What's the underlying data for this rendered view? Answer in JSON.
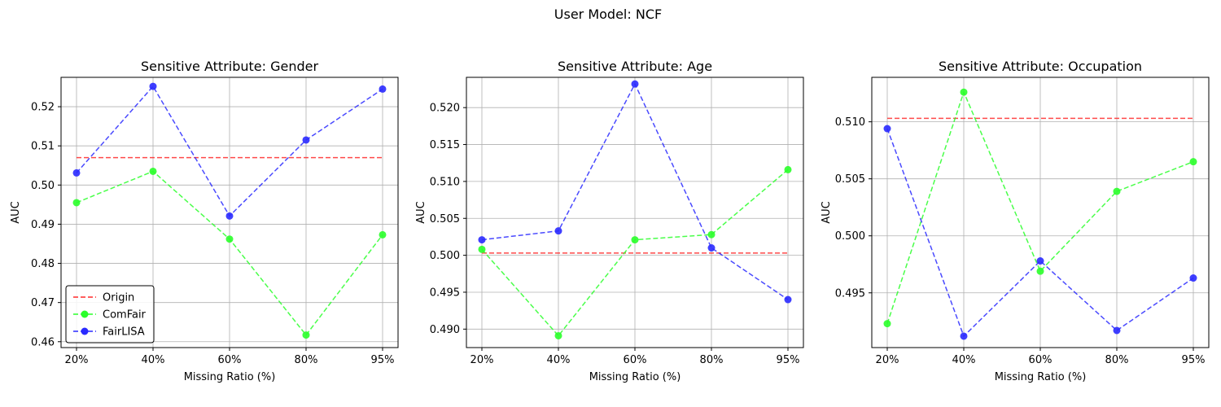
{
  "figure": {
    "suptitle": "User Model: NCF"
  },
  "colors": {
    "Origin": "#ff2a2a",
    "ComFair": "#2aff2a",
    "FairLISA": "#2a2aff",
    "grid": "#b0b0b0"
  },
  "chart_data": [
    {
      "type": "line",
      "title": "Sensitive Attribute: Gender",
      "xlabel": "Missing Ratio (%)",
      "ylabel": "AUC",
      "categories": [
        "20%",
        "40%",
        "60%",
        "80%",
        "95%"
      ],
      "ylim": [
        0.4585,
        0.5275
      ],
      "yticks": [
        0.46,
        0.47,
        0.48,
        0.49,
        0.5,
        0.51,
        0.52
      ],
      "ytick_labels": [
        "0.46",
        "0.47",
        "0.48",
        "0.49",
        "0.50",
        "0.51",
        "0.52"
      ],
      "grid": true,
      "legend": {
        "location": "lower left",
        "entries": [
          "Origin",
          "ComFair",
          "FairLISA"
        ]
      },
      "series": [
        {
          "name": "Origin",
          "style": "dashed",
          "markers": false,
          "values": [
            0.507,
            0.507,
            0.507,
            0.507,
            0.507
          ]
        },
        {
          "name": "ComFair",
          "style": "dashed",
          "markers": true,
          "values": [
            0.4955,
            0.5035,
            0.4862,
            0.4617,
            0.4873
          ]
        },
        {
          "name": "FairLISA",
          "style": "dashed",
          "markers": true,
          "values": [
            0.5031,
            0.5252,
            0.4921,
            0.5115,
            0.5245
          ]
        }
      ]
    },
    {
      "type": "line",
      "title": "Sensitive Attribute: Age",
      "xlabel": "Missing Ratio (%)",
      "ylabel": "AUC",
      "categories": [
        "20%",
        "40%",
        "60%",
        "80%",
        "95%"
      ],
      "ylim": [
        0.4875,
        0.5241
      ],
      "yticks": [
        0.49,
        0.495,
        0.5,
        0.505,
        0.51,
        0.515,
        0.52
      ],
      "ytick_labels": [
        "0.490",
        "0.495",
        "0.500",
        "0.505",
        "0.510",
        "0.515",
        "0.520"
      ],
      "grid": true,
      "legend": null,
      "series": [
        {
          "name": "Origin",
          "style": "dashed",
          "markers": false,
          "values": [
            0.5003,
            0.5003,
            0.5003,
            0.5003,
            0.5003
          ]
        },
        {
          "name": "ComFair",
          "style": "dashed",
          "markers": true,
          "values": [
            0.5008,
            0.4891,
            0.5021,
            0.5028,
            0.5116
          ]
        },
        {
          "name": "FairLISA",
          "style": "dashed",
          "markers": true,
          "values": [
            0.5021,
            0.5033,
            0.5232,
            0.501,
            0.494
          ]
        }
      ]
    },
    {
      "type": "line",
      "title": "Sensitive Attribute: Occupation",
      "xlabel": "Missing Ratio (%)",
      "ylabel": "AUC",
      "categories": [
        "20%",
        "40%",
        "60%",
        "80%",
        "95%"
      ],
      "ylim": [
        0.4902,
        0.5139
      ],
      "yticks": [
        0.495,
        0.5,
        0.505,
        0.51
      ],
      "ytick_labels": [
        "0.495",
        "0.500",
        "0.505",
        "0.510"
      ],
      "grid": true,
      "legend": null,
      "series": [
        {
          "name": "Origin",
          "style": "dashed",
          "markers": false,
          "values": [
            0.5103,
            0.5103,
            0.5103,
            0.5103,
            0.5103
          ]
        },
        {
          "name": "ComFair",
          "style": "dashed",
          "markers": true,
          "values": [
            0.4923,
            0.5126,
            0.4969,
            0.5039,
            0.5065
          ]
        },
        {
          "name": "FairLISA",
          "style": "dashed",
          "markers": true,
          "values": [
            0.5094,
            0.4912,
            0.4978,
            0.4917,
            0.4963
          ]
        }
      ]
    }
  ]
}
